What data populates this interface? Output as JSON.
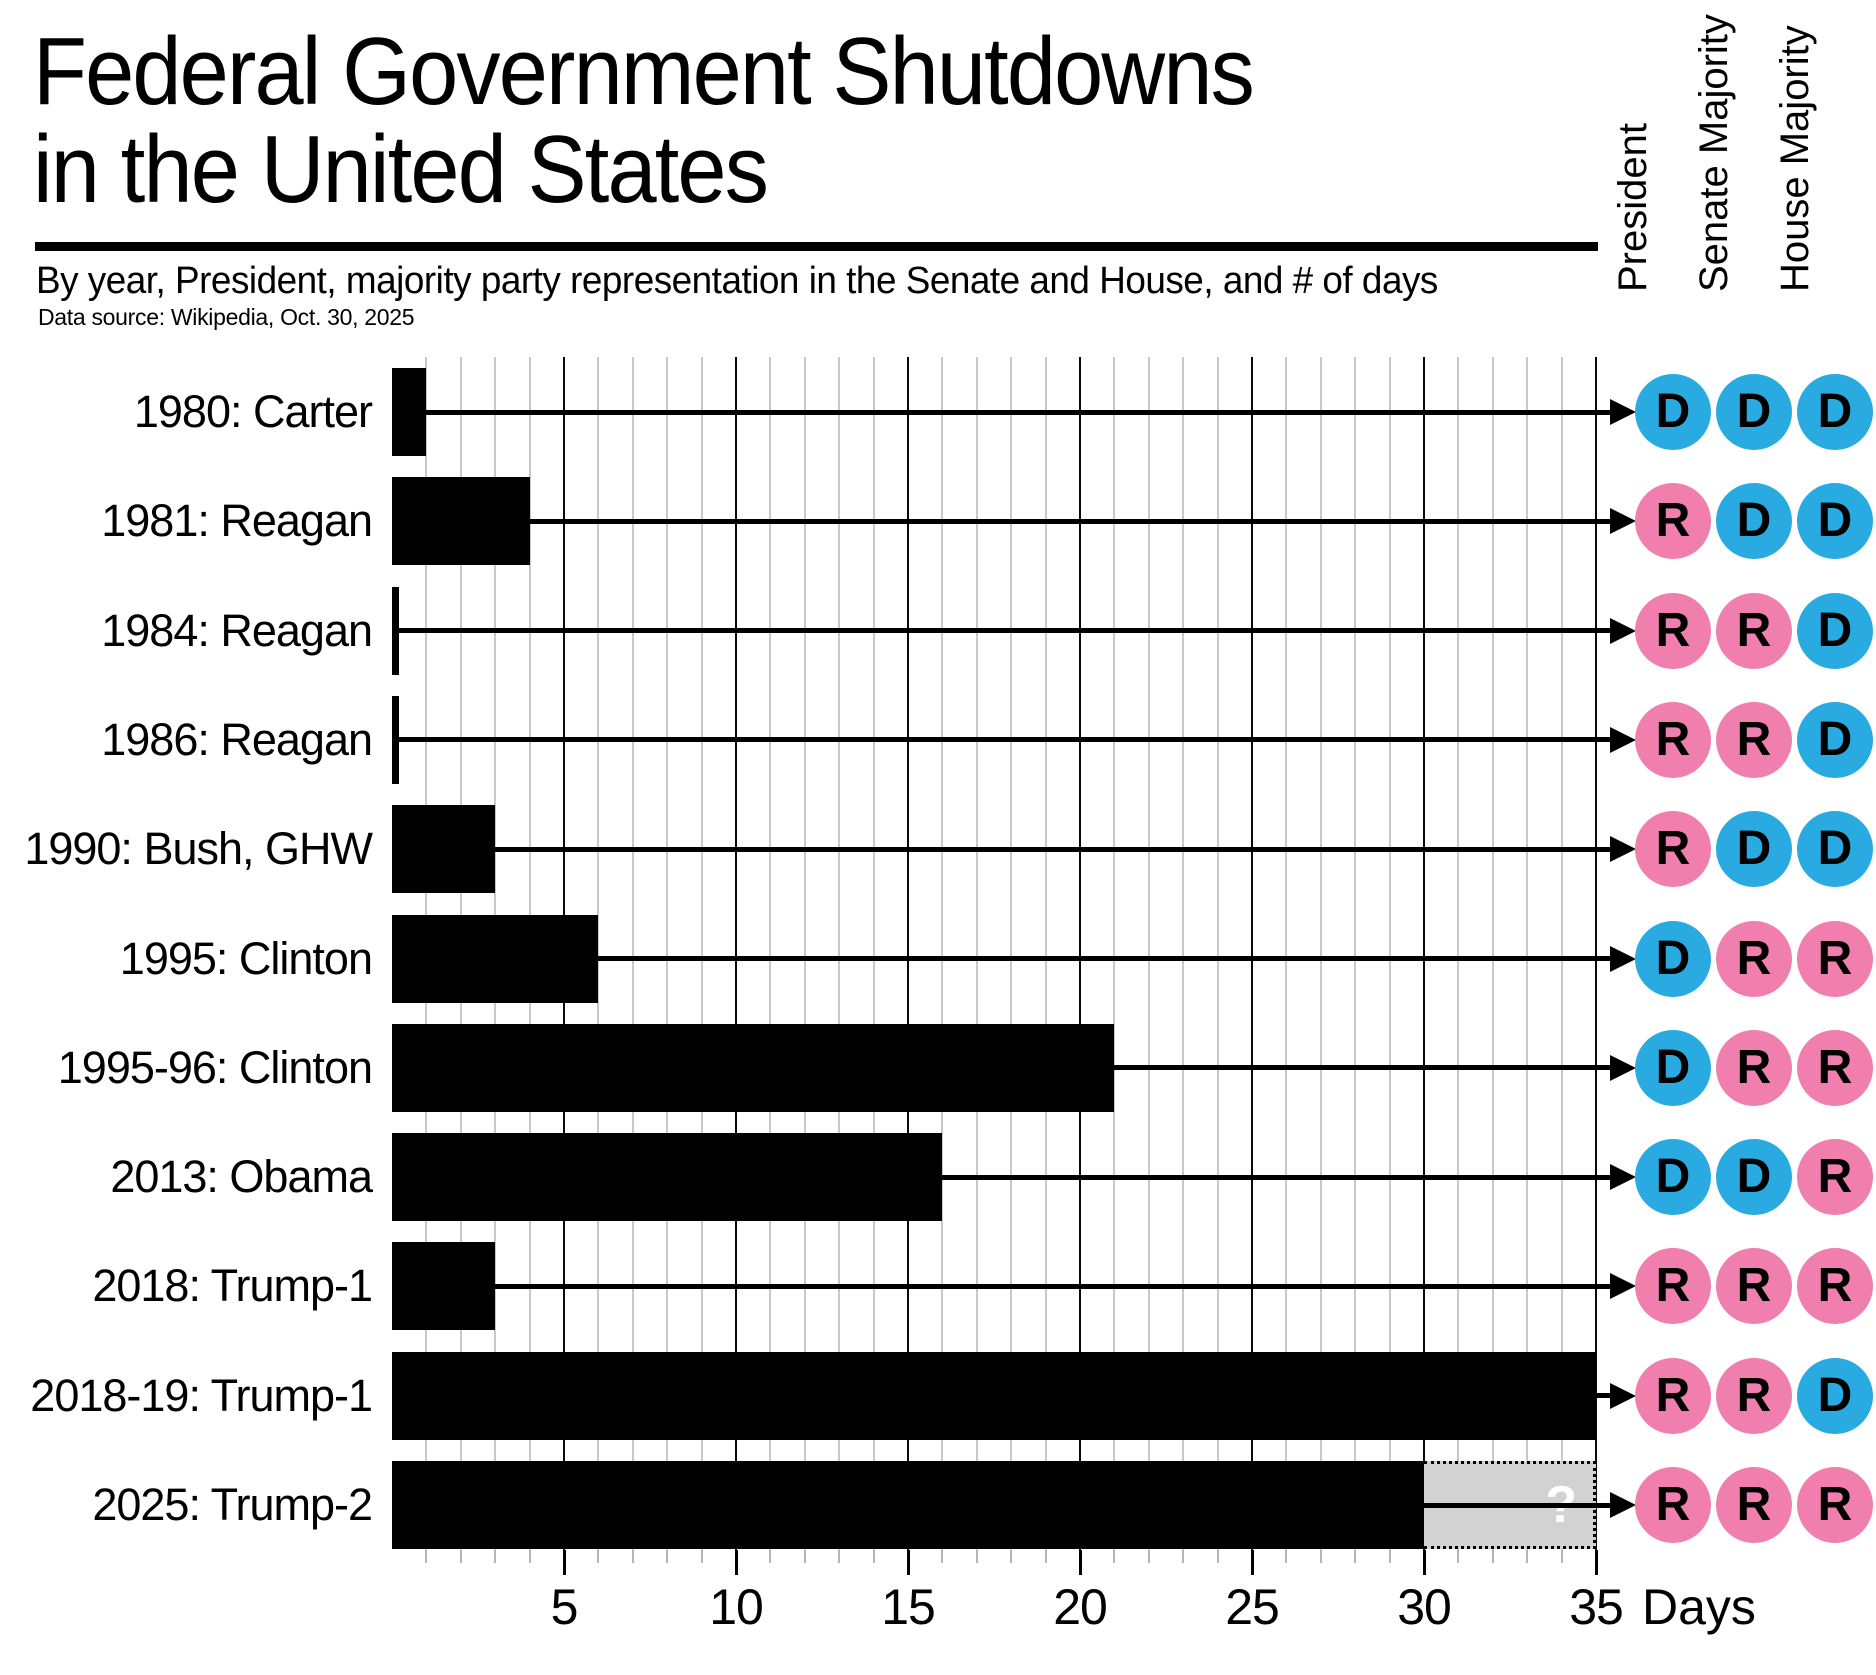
{
  "header": {
    "title_line1": "Federal Government Shutdowns",
    "title_line2": "in the United States",
    "subtitle": "By year, President, majority party representation in the Senate and House, and # of days",
    "data_source": "Data source: Wikipedia, Oct. 30, 2025"
  },
  "columns": [
    "President",
    "Senate Majority",
    "House Majority"
  ],
  "axis": {
    "label": "Days",
    "ticks": [
      5,
      10,
      15,
      20,
      25,
      30,
      35
    ],
    "max": 35
  },
  "colors": {
    "democrat": "#29ABE2",
    "republican": "#F07FAE",
    "bar": "#000000",
    "projected_fill": "#D2D2D2",
    "gridline_light": "#C8C8C8",
    "gridline_dark": "#0A0A0A"
  },
  "chart_data": {
    "type": "bar",
    "orientation": "horizontal",
    "unit": "days",
    "xlabel": "Days",
    "xlim": [
      0,
      35
    ],
    "grid": "on",
    "rows": [
      {
        "label": "1980: Carter",
        "days": 1,
        "president": "D",
        "senate": "D",
        "house": "D"
      },
      {
        "label": "1981: Reagan",
        "days": 4,
        "president": "R",
        "senate": "D",
        "house": "D"
      },
      {
        "label": "1984: Reagan",
        "days": 0,
        "president": "R",
        "senate": "R",
        "house": "D"
      },
      {
        "label": "1986: Reagan",
        "days": 0,
        "president": "R",
        "senate": "R",
        "house": "D"
      },
      {
        "label": "1990: Bush, GHW",
        "days": 3,
        "president": "R",
        "senate": "D",
        "house": "D"
      },
      {
        "label": "1995: Clinton",
        "days": 6,
        "president": "D",
        "senate": "R",
        "house": "R"
      },
      {
        "label": "1995-96: Clinton",
        "days": 21,
        "president": "D",
        "senate": "R",
        "house": "R"
      },
      {
        "label": "2013: Obama",
        "days": 16,
        "president": "D",
        "senate": "D",
        "house": "R"
      },
      {
        "label": "2018: Trump-1",
        "days": 3,
        "president": "R",
        "senate": "R",
        "house": "R"
      },
      {
        "label": "2018-19: Trump-1",
        "days": 35,
        "president": "R",
        "senate": "R",
        "house": "D"
      },
      {
        "label": "2025: Trump-2",
        "days": 30,
        "projected_to": 35,
        "uncertainty_label": "?",
        "president": "R",
        "senate": "R",
        "house": "R"
      }
    ]
  }
}
